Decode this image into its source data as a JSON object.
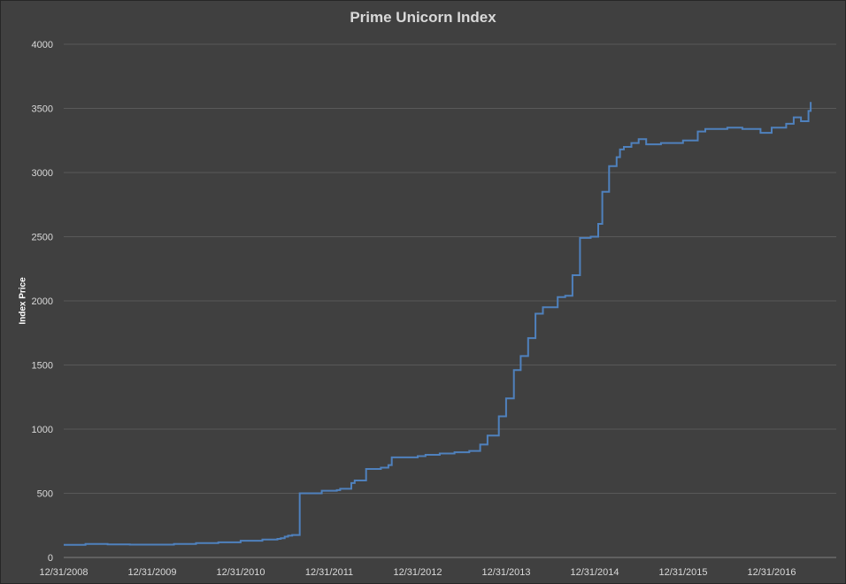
{
  "chart_data": {
    "type": "line",
    "title": "Prime Unicorn Index",
    "ylabel": "Index Price",
    "xlabel": "",
    "ylim": [
      0,
      4000
    ],
    "y_ticks": [
      0,
      500,
      1000,
      1500,
      2000,
      2500,
      3000,
      3500,
      4000
    ],
    "x_tick_labels": [
      "12/31/2008",
      "12/31/2009",
      "12/31/2010",
      "12/31/2011",
      "12/31/2012",
      "12/31/2013",
      "12/31/2014",
      "12/31/2015",
      "12/31/2016"
    ],
    "grid": true,
    "line_color": "#4f81bd",
    "series": [
      {
        "x": [
          "2008-12-31",
          "2009-03-31",
          "2009-06-30",
          "2009-09-30",
          "2009-12-31",
          "2010-03-31",
          "2010-06-30",
          "2010-09-30",
          "2010-12-31",
          "2011-03-31",
          "2011-06-01",
          "2011-06-15",
          "2011-07-01",
          "2011-07-15",
          "2011-08-01",
          "2011-09-01",
          "2011-12-01",
          "2012-02-01",
          "2012-02-15",
          "2012-04-01",
          "2012-04-15",
          "2012-06-01",
          "2012-08-01",
          "2012-09-01",
          "2012-09-15",
          "2012-12-31",
          "2013-02-01",
          "2013-04-01",
          "2013-06-01",
          "2013-08-01",
          "2013-09-15",
          "2013-10-15",
          "2013-12-01",
          "2013-12-31",
          "2014-02-01",
          "2014-03-01",
          "2014-04-01",
          "2014-05-01",
          "2014-06-01",
          "2014-08-01",
          "2014-09-01",
          "2014-10-01",
          "2014-11-01",
          "2014-12-15",
          "2015-01-15",
          "2015-02-01",
          "2015-03-01",
          "2015-04-01",
          "2015-04-15",
          "2015-05-01",
          "2015-06-01",
          "2015-07-01",
          "2015-08-01",
          "2015-09-01",
          "2015-10-01",
          "2015-12-31",
          "2016-03-01",
          "2016-04-01",
          "2016-06-01",
          "2016-07-01",
          "2016-09-01",
          "2016-11-15",
          "2016-12-31",
          "2017-03-01",
          "2017-04-01",
          "2017-05-01",
          "2017-06-01",
          "2017-06-10"
        ],
        "y": [
          98,
          105,
          102,
          100,
          100,
          105,
          112,
          118,
          130,
          140,
          145,
          150,
          162,
          170,
          175,
          500,
          520,
          525,
          535,
          580,
          600,
          690,
          700,
          720,
          780,
          790,
          800,
          810,
          820,
          830,
          880,
          950,
          1100,
          1240,
          1460,
          1570,
          1710,
          1900,
          1950,
          2030,
          2040,
          2200,
          2490,
          2500,
          2600,
          2850,
          3050,
          3120,
          3180,
          3200,
          3230,
          3260,
          3220,
          3220,
          3230,
          3250,
          3320,
          3340,
          3340,
          3350,
          3340,
          3310,
          3350,
          3380,
          3430,
          3400,
          3480,
          3550
        ]
      }
    ]
  }
}
